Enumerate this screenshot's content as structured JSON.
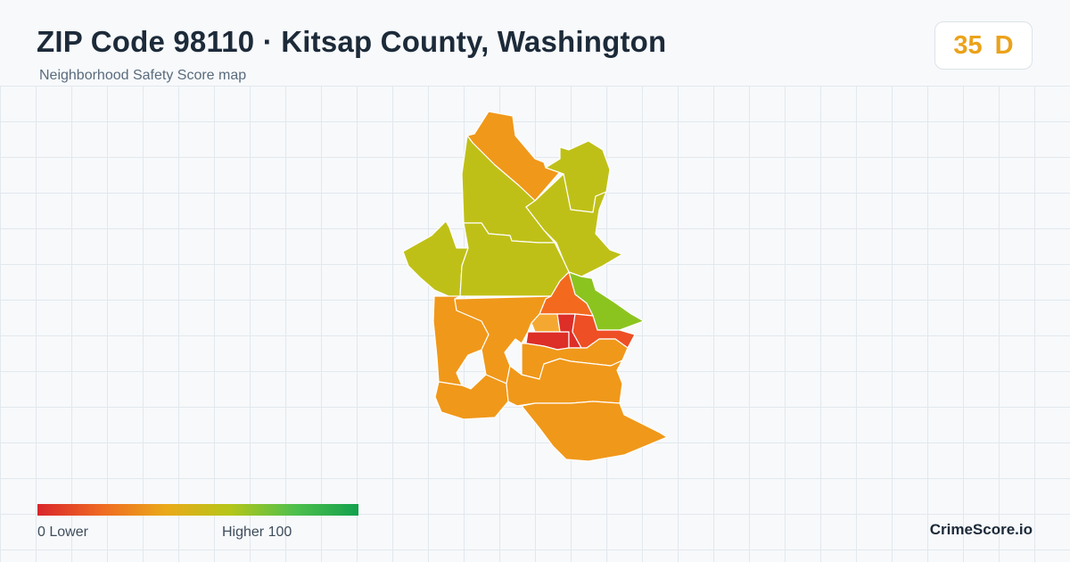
{
  "header": {
    "title": "ZIP Code 98110 · Kitsap County, Washington",
    "subtitle": "Neighborhood Safety Score map"
  },
  "score": {
    "value": "35",
    "grade": "D",
    "color": "#eba21a"
  },
  "legend": {
    "low_label": "0  Lower",
    "high_label": "Higher  100",
    "min": 0,
    "max": 100,
    "colors": [
      "#d9262b",
      "#ef6a22",
      "#eaa919",
      "#b5c619",
      "#4fc04c",
      "#13a04d"
    ]
  },
  "map": {
    "region_colors": {
      "orange": "#f0981a",
      "olive": "#bfc017",
      "green": "#8cc41f",
      "dark_orange": "#f36a1e",
      "red_orange": "#ee4f25",
      "red": "#dd2e28",
      "light_orange": "#f5a831"
    }
  },
  "footer": {
    "brand": "CrimeScore.io"
  }
}
